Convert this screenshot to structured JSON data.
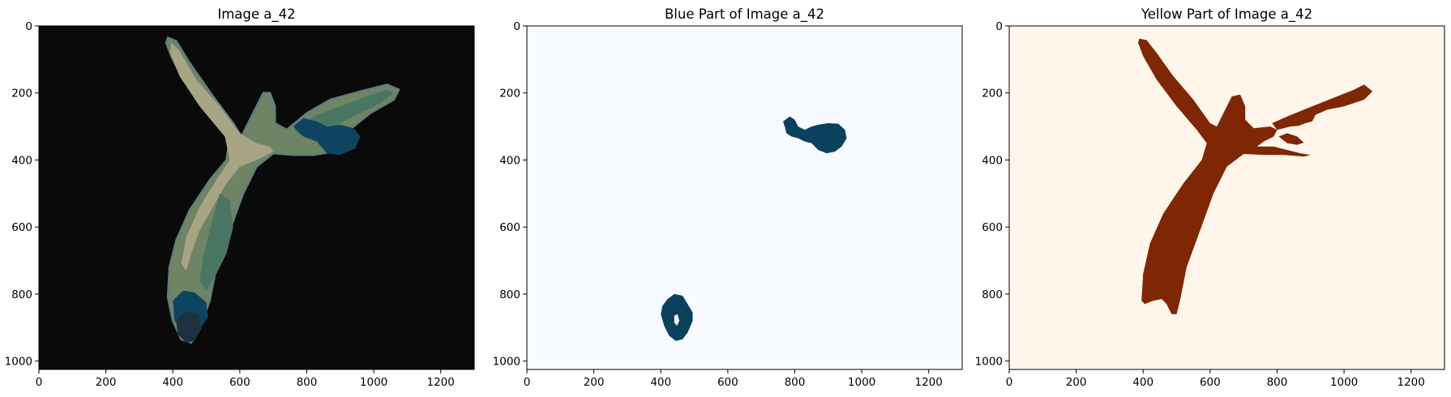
{
  "chart_data": [
    {
      "type": "image",
      "title": "Image a_42",
      "xlim": [
        0,
        1300
      ],
      "ylim": [
        1025,
        0
      ],
      "xticks": [
        0,
        200,
        400,
        600,
        800,
        1000,
        1200
      ],
      "yticks": [
        0,
        200,
        400,
        600,
        800,
        1000
      ],
      "colors": {
        "background": "#0a0a0a",
        "light": "#a8a585",
        "mid": "#6f8465",
        "green": "#4a7562",
        "blue": "#0d4460",
        "edge": "#5f7f78",
        "dark": "#1c3040"
      },
      "regions": [
        {
          "name": "stem",
          "color": "mid",
          "points": [
            [
              385,
              35
            ],
            [
              410,
              45
            ],
            [
              450,
              110
            ],
            [
              520,
              210
            ],
            [
              580,
              290
            ],
            [
              605,
              330
            ],
            [
              620,
              300
            ],
            [
              650,
              240
            ],
            [
              670,
              200
            ],
            [
              690,
              200
            ],
            [
              705,
              240
            ],
            [
              705,
              290
            ],
            [
              740,
              310
            ],
            [
              800,
              260
            ],
            [
              870,
              220
            ],
            [
              960,
              195
            ],
            [
              1040,
              175
            ],
            [
              1075,
              190
            ],
            [
              1060,
              220
            ],
            [
              990,
              260
            ],
            [
              940,
              300
            ],
            [
              900,
              340
            ],
            [
              880,
              375
            ],
            [
              820,
              385
            ],
            [
              760,
              385
            ],
            [
              700,
              380
            ],
            [
              650,
              420
            ],
            [
              610,
              500
            ],
            [
              570,
              610
            ],
            [
              530,
              720
            ],
            [
              510,
              820
            ],
            [
              480,
              905
            ],
            [
              455,
              945
            ],
            [
              425,
              935
            ],
            [
              400,
              880
            ],
            [
              385,
              810
            ],
            [
              390,
              720
            ],
            [
              410,
              640
            ],
            [
              450,
              550
            ],
            [
              510,
              460
            ],
            [
              560,
              400
            ],
            [
              570,
              330
            ],
            [
              500,
              250
            ],
            [
              430,
              160
            ],
            [
              395,
              90
            ],
            [
              380,
              50
            ]
          ]
        },
        {
          "name": "upper-light-streak",
          "color": "light",
          "points": [
            [
              395,
              50
            ],
            [
              420,
              75
            ],
            [
              470,
              160
            ],
            [
              540,
              240
            ],
            [
              600,
              320
            ],
            [
              650,
              350
            ],
            [
              690,
              360
            ],
            [
              700,
              375
            ],
            [
              650,
              400
            ],
            [
              600,
              420
            ],
            [
              560,
              470
            ],
            [
              520,
              540
            ],
            [
              480,
              610
            ],
            [
              455,
              680
            ],
            [
              440,
              730
            ],
            [
              425,
              710
            ],
            [
              440,
              630
            ],
            [
              480,
              540
            ],
            [
              530,
              460
            ],
            [
              570,
              400
            ],
            [
              555,
              330
            ],
            [
              480,
              240
            ],
            [
              420,
              150
            ],
            [
              392,
              80
            ]
          ]
        },
        {
          "name": "right-wing-green",
          "color": "green",
          "points": [
            [
              760,
              310
            ],
            [
              830,
              265
            ],
            [
              900,
              240
            ],
            [
              980,
              210
            ],
            [
              1040,
              190
            ],
            [
              1060,
              200
            ],
            [
              1020,
              230
            ],
            [
              940,
              270
            ],
            [
              880,
              300
            ],
            [
              830,
              320
            ],
            [
              790,
              330
            ]
          ]
        },
        {
          "name": "lower-green",
          "color": "green",
          "points": [
            [
              540,
              500
            ],
            [
              570,
              520
            ],
            [
              580,
              600
            ],
            [
              560,
              680
            ],
            [
              530,
              740
            ],
            [
              500,
              790
            ],
            [
              480,
              760
            ],
            [
              490,
              690
            ],
            [
              510,
              610
            ]
          ]
        },
        {
          "name": "lower-blue",
          "color": "blue",
          "points": [
            [
              400,
              820
            ],
            [
              430,
              790
            ],
            [
              465,
              795
            ],
            [
              500,
              825
            ],
            [
              505,
              870
            ],
            [
              480,
              905
            ],
            [
              440,
              910
            ],
            [
              405,
              880
            ]
          ]
        },
        {
          "name": "lower-dark",
          "color": "dark",
          "points": [
            [
              410,
              880
            ],
            [
              440,
              850
            ],
            [
              475,
              860
            ],
            [
              485,
              900
            ],
            [
              465,
              940
            ],
            [
              440,
              945
            ],
            [
              415,
              920
            ]
          ]
        },
        {
          "name": "right-blue",
          "color": "blue",
          "points": [
            [
              760,
              300
            ],
            [
              790,
              275
            ],
            [
              830,
              285
            ],
            [
              860,
              300
            ],
            [
              900,
              295
            ],
            [
              940,
              305
            ],
            [
              960,
              330
            ],
            [
              945,
              365
            ],
            [
              900,
              385
            ],
            [
              860,
              380
            ],
            [
              830,
              345
            ],
            [
              790,
              330
            ]
          ]
        }
      ]
    },
    {
      "type": "image",
      "title": "Blue Part of Image a_42",
      "xlim": [
        0,
        1300
      ],
      "ylim": [
        1025,
        0
      ],
      "xticks": [
        0,
        200,
        400,
        600,
        800,
        1000,
        1200
      ],
      "yticks": [
        0,
        200,
        400,
        600,
        800,
        1000
      ],
      "colors": {
        "background": "#f7fbff",
        "blue": "#0c415e",
        "hole": "#f7fbff"
      },
      "regions": [
        {
          "name": "upper-blob",
          "color": "blue",
          "points": [
            [
              765,
              285
            ],
            [
              785,
              270
            ],
            [
              800,
              280
            ],
            [
              810,
              300
            ],
            [
              830,
              310
            ],
            [
              850,
              300
            ],
            [
              870,
              295
            ],
            [
              900,
              290
            ],
            [
              930,
              292
            ],
            [
              950,
              310
            ],
            [
              955,
              335
            ],
            [
              940,
              360
            ],
            [
              920,
              375
            ],
            [
              895,
              380
            ],
            [
              870,
              370
            ],
            [
              850,
              350
            ],
            [
              830,
              345
            ],
            [
              810,
              335
            ],
            [
              790,
              330
            ],
            [
              775,
              320
            ],
            [
              770,
              300
            ]
          ]
        },
        {
          "name": "lower-blob",
          "color": "blue",
          "points": [
            [
              420,
              815
            ],
            [
              440,
              800
            ],
            [
              465,
              805
            ],
            [
              480,
              830
            ],
            [
              495,
              855
            ],
            [
              495,
              880
            ],
            [
              480,
              915
            ],
            [
              465,
              935
            ],
            [
              445,
              940
            ],
            [
              425,
              925
            ],
            [
              410,
              895
            ],
            [
              400,
              860
            ],
            [
              405,
              835
            ]
          ]
        },
        {
          "name": "lower-hole",
          "color": "hole",
          "points": [
            [
              440,
              865
            ],
            [
              450,
              860
            ],
            [
              455,
              880
            ],
            [
              448,
              895
            ],
            [
              440,
              885
            ]
          ]
        }
      ]
    },
    {
      "type": "image",
      "title": "Yellow Part of Image a_42",
      "xlim": [
        0,
        1300
      ],
      "ylim": [
        1025,
        0
      ],
      "xticks": [
        0,
        200,
        400,
        600,
        800,
        1000,
        1200
      ],
      "yticks": [
        0,
        200,
        400,
        600,
        800,
        1000
      ],
      "colors": {
        "background": "#fff5eb",
        "brown": "#7f2704"
      },
      "regions": [
        {
          "name": "yellow-shape",
          "color": "brown",
          "points": [
            [
              388,
              38
            ],
            [
              410,
              42
            ],
            [
              440,
              80
            ],
            [
              490,
              150
            ],
            [
              550,
              220
            ],
            [
              600,
              290
            ],
            [
              620,
              300
            ],
            [
              645,
              250
            ],
            [
              665,
              210
            ],
            [
              690,
              205
            ],
            [
              705,
              240
            ],
            [
              705,
              280
            ],
            [
              730,
              305
            ],
            [
              780,
              300
            ],
            [
              800,
              310
            ],
            [
              790,
              330
            ],
            [
              760,
              345
            ],
            [
              740,
              360
            ],
            [
              790,
              360
            ],
            [
              830,
              370
            ],
            [
              870,
              380
            ],
            [
              900,
              385
            ],
            [
              880,
              390
            ],
            [
              820,
              385
            ],
            [
              760,
              385
            ],
            [
              700,
              382
            ],
            [
              650,
              420
            ],
            [
              610,
              500
            ],
            [
              570,
              610
            ],
            [
              530,
              720
            ],
            [
              510,
              820
            ],
            [
              500,
              860
            ],
            [
              485,
              860
            ],
            [
              470,
              830
            ],
            [
              455,
              815
            ],
            [
              430,
              820
            ],
            [
              405,
              830
            ],
            [
              395,
              820
            ],
            [
              400,
              740
            ],
            [
              420,
              650
            ],
            [
              460,
              560
            ],
            [
              520,
              470
            ],
            [
              575,
              400
            ],
            [
              590,
              350
            ],
            [
              560,
              310
            ],
            [
              500,
              240
            ],
            [
              440,
              160
            ],
            [
              400,
              90
            ],
            [
              385,
              50
            ]
          ]
        },
        {
          "name": "right-wing",
          "color": "brown",
          "points": [
            [
              785,
              290
            ],
            [
              830,
              270
            ],
            [
              880,
              250
            ],
            [
              930,
              230
            ],
            [
              980,
              210
            ],
            [
              1030,
              190
            ],
            [
              1060,
              175
            ],
            [
              1085,
              195
            ],
            [
              1060,
              220
            ],
            [
              1000,
              240
            ],
            [
              950,
              250
            ],
            [
              915,
              265
            ],
            [
              905,
              285
            ],
            [
              885,
              290
            ],
            [
              865,
              298
            ],
            [
              840,
              300
            ],
            [
              820,
              305
            ],
            [
              800,
              310
            ]
          ]
        },
        {
          "name": "fragment",
          "color": "brown",
          "points": [
            [
              805,
              330
            ],
            [
              830,
              320
            ],
            [
              860,
              330
            ],
            [
              880,
              348
            ],
            [
              860,
              355
            ],
            [
              830,
              350
            ]
          ]
        }
      ]
    }
  ]
}
